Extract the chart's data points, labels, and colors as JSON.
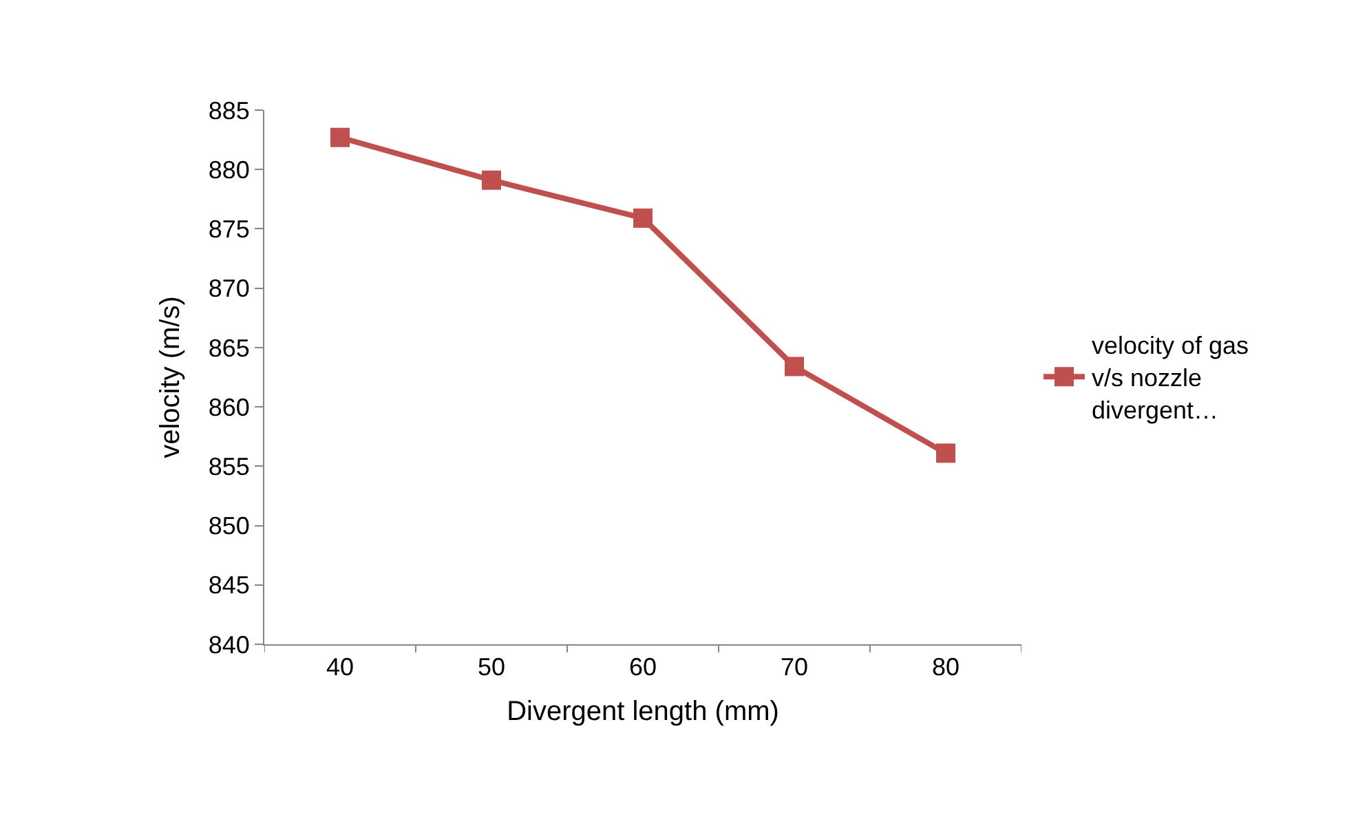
{
  "chart_data": {
    "type": "line",
    "xlabel": "Divergent length (mm)",
    "ylabel": "velocity (m/s)",
    "categories": [
      "40",
      "50",
      "60",
      "70",
      "80"
    ],
    "series": [
      {
        "name": "velocity of gas v/s nozzle divergent…",
        "color": "#c0504d",
        "values": [
          882.7,
          879.1,
          875.9,
          863.4,
          856.1
        ]
      }
    ],
    "ylim": [
      840,
      885
    ],
    "yticks": [
      840,
      845,
      850,
      855,
      860,
      865,
      870,
      875,
      880,
      885
    ],
    "legend": "right",
    "marker": "square",
    "line_style": "solid"
  }
}
